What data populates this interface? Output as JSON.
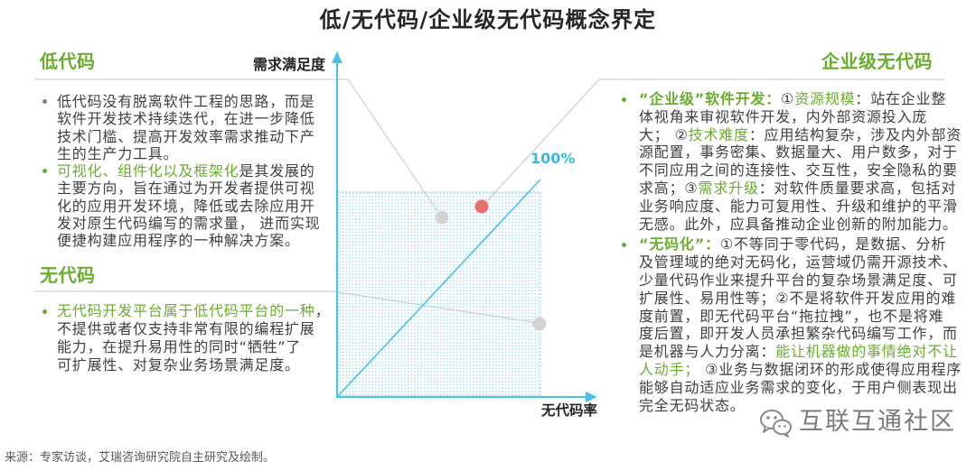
{
  "title": "低/无代码/企业级无代码概念界定",
  "colors": {
    "accent_green": "#6aad2e",
    "axis_blue": "#49c1e8",
    "label_blue": "#38b8e2",
    "point_gray": "#d3d3d3",
    "point_red": "#ec6e6e",
    "text": "#404040"
  },
  "low_code": {
    "heading": "低代码",
    "bullets": [
      {
        "segments": [
          {
            "text": "低代码没有脱离软件工程的思路，而是\n软件开发技术持续迭代，在进一步降低\n技术门槛、提高开发效率需求推动下产\n生的生产力工具。"
          }
        ]
      },
      {
        "segments": [
          {
            "text": "可视化、组件化以及框架化"
          },
          {
            "text": "是其发展的\n主要方向，旨在通过为开发者提供可视\n化的应用开发环境，降低或去除应用开\n发对原生代码编写的需求量， 进而实现\n便捷构建应用程序的一种解决方案。"
          }
        ]
      }
    ]
  },
  "no_code": {
    "heading": "无代码",
    "bullets": [
      {
        "segments": [
          {
            "text": "无代码开发平台属于低代码平台的一种"
          },
          {
            "text": "，\n不提供或者仅支持非常有限的编程扩展\n能力，在提升易用性的同时“牺牲”了\n可扩展性、对复杂业务场景满足度。"
          }
        ]
      }
    ]
  },
  "enterprise_no_code": {
    "heading": "企业级无代码",
    "bullets": [
      {
        "segments": [
          {
            "text": "“企业级”软件开发："
          },
          {
            "text": "①"
          },
          {
            "text": "资源规模"
          },
          {
            "text": "：站在企业整\n体视角来审视软件开发，内外部资源投入庞\n大； ②"
          },
          {
            "text": "技术难度"
          },
          {
            "text": "：应用结构复杂，涉及内外部资\n源配置，事务密集、数据量大、用户数多，对于\n不同应用之间的连接性、交互性，安全隐私的要\n求高；③"
          },
          {
            "text": "需求升级"
          },
          {
            "text": "：对软件质量要求高，包括对\n业务响应度、能力可复用性、升级和维护的平滑\n无感。此外，应具备推动企业创新的附加能力。"
          }
        ]
      },
      {
        "segments": [
          {
            "text": "“无码化”："
          },
          {
            "text": "①不等同于零代码，是数据、分析\n及管理域的绝对无码化，运营域仍需开源技术、\n少量代码作业来提升平台的复杂场景满足度、可\n扩展性、易用性等；②不是将软件开发应用的难\n度前置，即无代码平台“拖拉拽”，也不是将难\n度后置，即开发人员承担繁杂代码编写工作，而\n是机器与人力分离："
          },
          {
            "text": "能让机器做的事情绝对不让\n人动手；"
          },
          {
            "text": " ③业务与数据闭环的形成使得应用程序\n能够自动适应业务需求的变化，于用户侧表现出\n完全无码状态。"
          }
        ]
      }
    ]
  },
  "diagram": {
    "y_axis_label": "需求满足度",
    "x_axis_label": "无代码率",
    "diagonal_label": "100%"
  },
  "source": "来源：专家访谈，艾瑞咨询研究院自主研究及绘制。",
  "watermark": {
    "icon": "wechat-icon",
    "text": "互联互通社区"
  }
}
